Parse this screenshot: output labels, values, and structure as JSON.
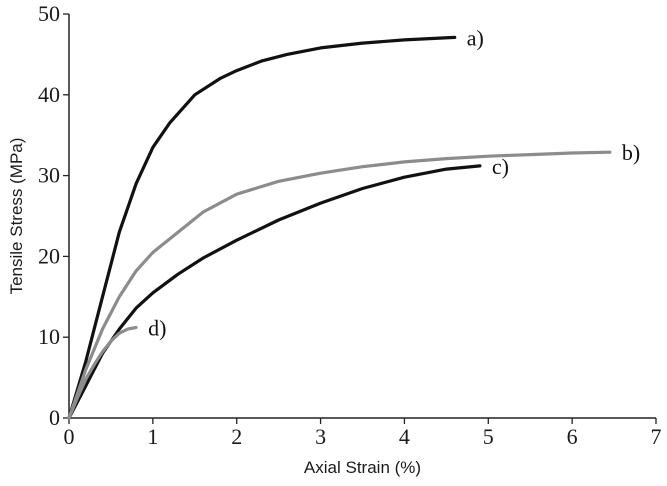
{
  "chart_data": {
    "type": "line",
    "title": "",
    "xlabel": "Axial Strain (%)",
    "ylabel": "Tensile Stress (MPa)",
    "xlim": [
      0,
      7
    ],
    "ylim": [
      0,
      50
    ],
    "xticks": [
      "0",
      "1",
      "2",
      "3",
      "4",
      "5",
      "6",
      "7"
    ],
    "yticks": [
      "0",
      "10",
      "20",
      "30",
      "40",
      "50"
    ],
    "grid": false,
    "series": [
      {
        "label": "a)",
        "color": "#111111",
        "x": [
          0,
          0.2,
          0.4,
          0.6,
          0.8,
          1.0,
          1.2,
          1.5,
          1.8,
          2.0,
          2.3,
          2.6,
          3.0,
          3.5,
          4.0,
          4.6
        ],
        "y": [
          0,
          7,
          15,
          23,
          29,
          33.5,
          36.5,
          40,
          42,
          43,
          44.2,
          45,
          45.8,
          46.4,
          46.8,
          47.1
        ]
      },
      {
        "label": "b)",
        "color": "#8c8c8c",
        "x": [
          0,
          0.2,
          0.4,
          0.6,
          0.8,
          1.0,
          1.3,
          1.6,
          2.0,
          2.5,
          3.0,
          3.5,
          4.0,
          4.5,
          5.0,
          5.5,
          6.0,
          6.45
        ],
        "y": [
          0,
          6,
          11,
          15,
          18.2,
          20.5,
          23,
          25.5,
          27.7,
          29.3,
          30.3,
          31.1,
          31.7,
          32.1,
          32.4,
          32.6,
          32.8,
          32.9
        ]
      },
      {
        "label": "c)",
        "color": "#111111",
        "x": [
          0,
          0.2,
          0.4,
          0.6,
          0.8,
          1.0,
          1.3,
          1.6,
          2.0,
          2.5,
          3.0,
          3.5,
          4.0,
          4.5,
          4.9
        ],
        "y": [
          0,
          4,
          8,
          11,
          13.6,
          15.5,
          17.8,
          19.8,
          22,
          24.5,
          26.6,
          28.4,
          29.8,
          30.8,
          31.2
        ]
      },
      {
        "label": "d)",
        "color": "#8c8c8c",
        "x": [
          0,
          0.1,
          0.2,
          0.3,
          0.4,
          0.5,
          0.6,
          0.7,
          0.8
        ],
        "y": [
          0,
          2.5,
          4.8,
          6.6,
          8.2,
          9.5,
          10.5,
          11.0,
          11.2
        ]
      }
    ]
  }
}
